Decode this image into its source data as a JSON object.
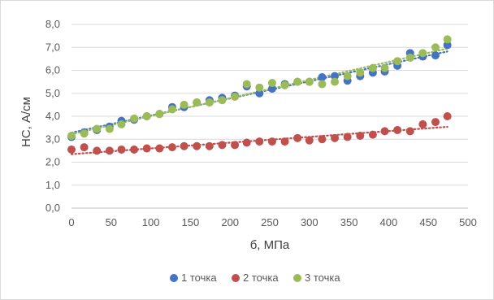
{
  "chart_data": {
    "type": "scatter",
    "xlabel": "б, МПа",
    "ylabel": "НС, А/см",
    "xlim": [
      0,
      500
    ],
    "ylim": [
      0,
      8
    ],
    "xticks": [
      "0",
      "50",
      "100",
      "150",
      "200",
      "250",
      "300",
      "350",
      "400",
      "450",
      "500"
    ],
    "yticks": [
      "0,0",
      "1,0",
      "2,0",
      "3,0",
      "4,0",
      "5,0",
      "6,0",
      "7,0",
      "8,0"
    ],
    "grid": "horizontal",
    "legend_position": "bottom",
    "trendlines": "linear, dotted",
    "series": [
      {
        "name": "1 точка",
        "color": "#4472c4",
        "x": [
          0,
          16,
          32,
          48,
          63,
          79,
          95,
          111,
          127,
          142,
          158,
          174,
          190,
          206,
          221,
          237,
          253,
          269,
          285,
          300,
          316,
          332,
          348,
          364,
          380,
          395,
          411,
          427,
          443,
          459,
          474
        ],
        "y": [
          3.1,
          3.3,
          3.4,
          3.55,
          3.8,
          3.85,
          4.0,
          4.1,
          4.4,
          4.4,
          4.6,
          4.7,
          4.8,
          4.9,
          5.3,
          5.0,
          5.2,
          5.4,
          5.5,
          5.5,
          5.7,
          5.75,
          5.55,
          5.75,
          5.9,
          5.95,
          6.2,
          6.75,
          6.6,
          6.65,
          7.1
        ]
      },
      {
        "name": "2 точка",
        "color": "#c0504d",
        "x": [
          0,
          16,
          32,
          48,
          63,
          79,
          95,
          111,
          127,
          142,
          158,
          174,
          190,
          206,
          221,
          237,
          253,
          269,
          285,
          300,
          316,
          332,
          348,
          364,
          380,
          395,
          411,
          427,
          443,
          459,
          474
        ],
        "y": [
          2.55,
          2.65,
          2.5,
          2.5,
          2.55,
          2.55,
          2.6,
          2.6,
          2.65,
          2.7,
          2.7,
          2.7,
          2.75,
          2.75,
          2.85,
          2.9,
          2.9,
          2.9,
          3.05,
          2.95,
          3.0,
          3.05,
          3.1,
          3.15,
          3.2,
          3.35,
          3.4,
          3.35,
          3.65,
          3.75,
          4.0
        ]
      },
      {
        "name": "3 точка",
        "color": "#9bbb59",
        "x": [
          0,
          16,
          32,
          48,
          63,
          79,
          95,
          111,
          127,
          142,
          158,
          174,
          190,
          206,
          221,
          237,
          253,
          269,
          285,
          300,
          316,
          332,
          348,
          364,
          380,
          395,
          411,
          427,
          443,
          459,
          474
        ],
        "y": [
          3.15,
          3.25,
          3.45,
          3.45,
          3.65,
          3.9,
          4.0,
          4.1,
          4.3,
          4.5,
          4.6,
          4.6,
          4.7,
          4.85,
          5.4,
          5.25,
          5.45,
          5.35,
          5.5,
          5.5,
          5.4,
          5.5,
          5.75,
          5.9,
          6.1,
          6.1,
          6.4,
          6.55,
          6.75,
          7.0,
          7.35
        ]
      }
    ]
  }
}
